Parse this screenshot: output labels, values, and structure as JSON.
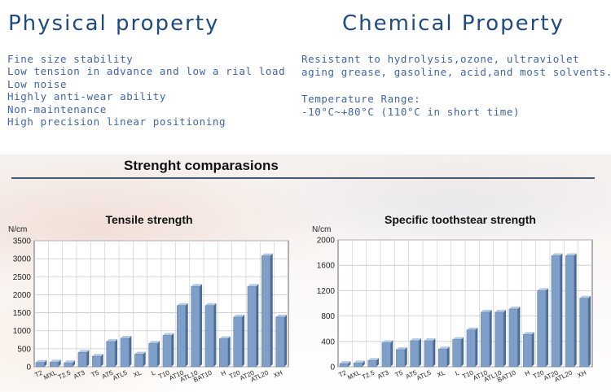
{
  "physical": {
    "heading": "Physical property",
    "items": [
      "Fine size stability",
      "Low tension in advance and low a rial load",
      "Low noise",
      "Highly anti-wear ability",
      "Non-maintenance",
      "High precision linear positioning"
    ]
  },
  "chemical": {
    "heading": "Chemical Property",
    "resistance_line1": "Resistant to hydrolysis,ozone, ultraviolet",
    "resistance_line2": "aging grease, gasoline, acid,and most solvents.",
    "temperature_label": "Temperature Range:",
    "temperature_value": " -10°C~+80°C (110°C in short time)"
  },
  "comparison": {
    "title": "Strenght comparasions"
  },
  "colors": {
    "heading": "#1f4a82",
    "text": "#3f64a8",
    "bar_front": "#7f9fc9",
    "bar_side": "#4d6c97",
    "bar_top": "#b5c9e3"
  },
  "chart_data": [
    {
      "type": "bar",
      "title": "Tensile strength",
      "ylabel": "N/cm",
      "xlabel": "",
      "ylim": [
        0,
        3500
      ],
      "yticks": [
        0,
        500,
        1000,
        1500,
        2000,
        2500,
        3000,
        3500
      ],
      "grid": true,
      "categories": [
        "T2",
        "MXL",
        "T2.5",
        "AT3",
        "T5",
        "AT5",
        "ATL5",
        "XL",
        "L",
        "T10",
        "AT10",
        "ATL10",
        "BAT10",
        "H",
        "T20",
        "AT20",
        "ATL20",
        "XH"
      ],
      "values": [
        120,
        130,
        110,
        400,
        290,
        700,
        790,
        350,
        650,
        870,
        1700,
        2230,
        1700,
        780,
        1380,
        2230,
        3080,
        1380
      ]
    },
    {
      "type": "bar",
      "title": "Specific toothstear strength",
      "ylabel": "N/cm",
      "xlabel": "",
      "ylim": [
        0,
        2000
      ],
      "yticks": [
        0,
        400,
        800,
        1200,
        1600,
        2000
      ],
      "grid": true,
      "categories": [
        "T2",
        "MXL",
        "T2.5",
        "AT3",
        "T5",
        "AT5",
        "ATL5",
        "XL",
        "L",
        "T10",
        "AT10",
        "ATL10",
        "BAT10",
        "H",
        "T20",
        "AT20",
        "ATL20",
        "XH"
      ],
      "values": [
        50,
        60,
        100,
        380,
        270,
        410,
        410,
        280,
        430,
        580,
        860,
        860,
        910,
        510,
        1200,
        1750,
        1750,
        1080
      ]
    }
  ]
}
